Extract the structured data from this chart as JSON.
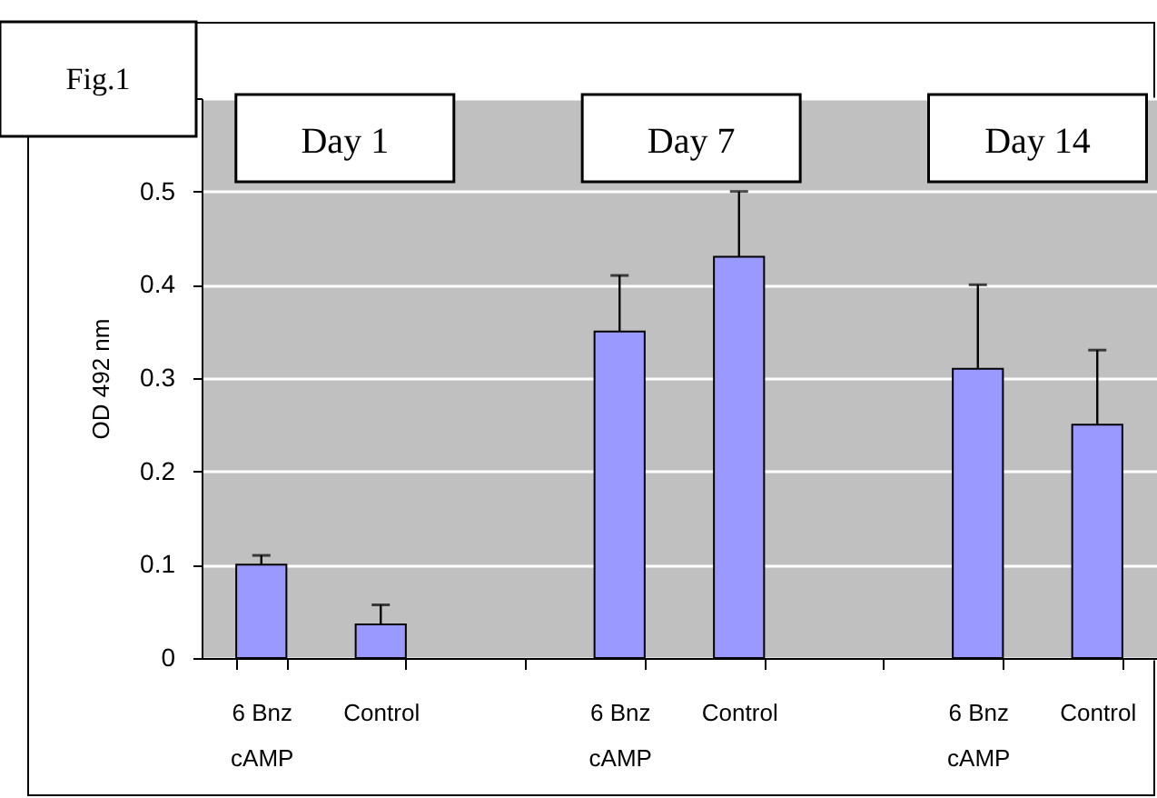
{
  "chart_data": {
    "type": "bar",
    "ylabel": "OD 492 nm",
    "categories": [
      "6 Bnz\ncAMP",
      "Control",
      null,
      "6 Bnz\ncAMP",
      "Control",
      null,
      "6 Bnz\ncAMP",
      "Control"
    ],
    "values": [
      0.1,
      0.036,
      null,
      0.35,
      0.43,
      null,
      0.31,
      0.25
    ],
    "errors": [
      [
        0.1,
        0.11
      ],
      [
        0.036,
        0.057
      ],
      null,
      [
        0.35,
        0.41
      ],
      [
        0.43,
        0.5
      ],
      null,
      [
        0.31,
        0.4
      ],
      [
        0.25,
        0.33
      ]
    ],
    "color": "#9999ff",
    "ylim": [
      0,
      0.6
    ],
    "yticks": [
      0,
      0.1,
      0.2,
      0.3,
      0.4,
      0.5,
      {
        "value": 0.6,
        "label": null
      }
    ],
    "grid": "y",
    "annotations": [
      "Fig.1",
      "Day 1",
      "Day 7",
      "Day 14"
    ]
  }
}
